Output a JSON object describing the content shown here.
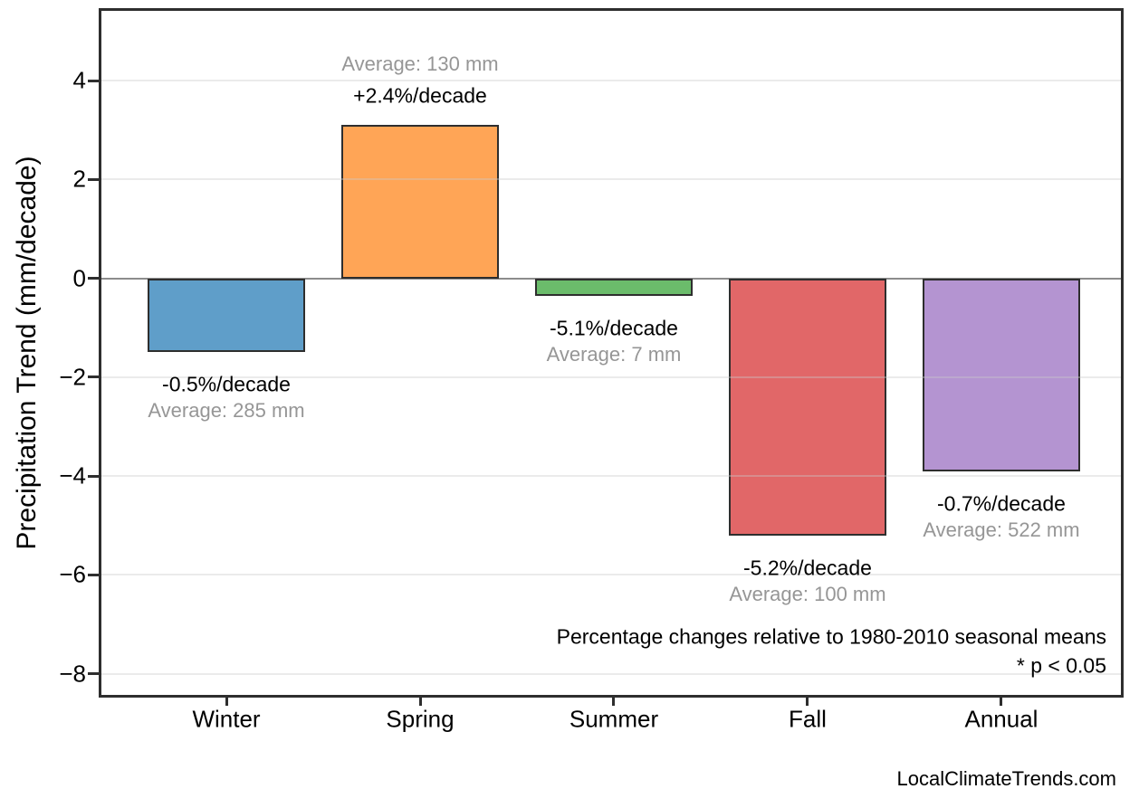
{
  "page": {
    "background": "#ffffff",
    "watermark": "LocalClimateTrends.com"
  },
  "chart_data": {
    "type": "bar",
    "title": "",
    "xlabel": "",
    "ylabel": "Precipitation Trend (mm/decade)",
    "categories": [
      "Winter",
      "Spring",
      "Summer",
      "Fall",
      "Annual"
    ],
    "values": [
      -1.5,
      3.1,
      -0.36,
      -5.2,
      -3.9
    ],
    "bar_labels_pct": [
      "-0.5%/decade",
      "+2.4%/decade",
      "-5.1%/decade",
      "-5.2%/decade",
      "-0.7%/decade"
    ],
    "bar_labels_avg": [
      "Average: 285 mm",
      "Average: 130 mm",
      "Average: 7 mm",
      "Average: 100 mm",
      "Average: 522 mm"
    ],
    "bar_colors": [
      "#5F9EC9",
      "#FFA556",
      "#6BBC6B",
      "#E16768",
      "#B494D1"
    ],
    "bar_edge_color": "#2e2e2e",
    "yticks": [
      4,
      2,
      0,
      -2,
      -4,
      -6,
      -8
    ],
    "ytick_labels": [
      "4",
      "2",
      "0",
      "−2",
      "−4",
      "−6",
      "−8"
    ],
    "ylim": [
      -8.43,
      5.41
    ],
    "xlim": [
      -0.645,
      4.617
    ],
    "bar_width_units": 0.815,
    "grid": true,
    "grid_color": "rgba(203,203,203,0.38)",
    "zero_line_color": "#8c8c8c",
    "legend": "none",
    "annotations": {
      "note_line1": "Percentage changes relative to 1980-2010 seasonal means",
      "note_line2": "* p < 0.05"
    }
  }
}
